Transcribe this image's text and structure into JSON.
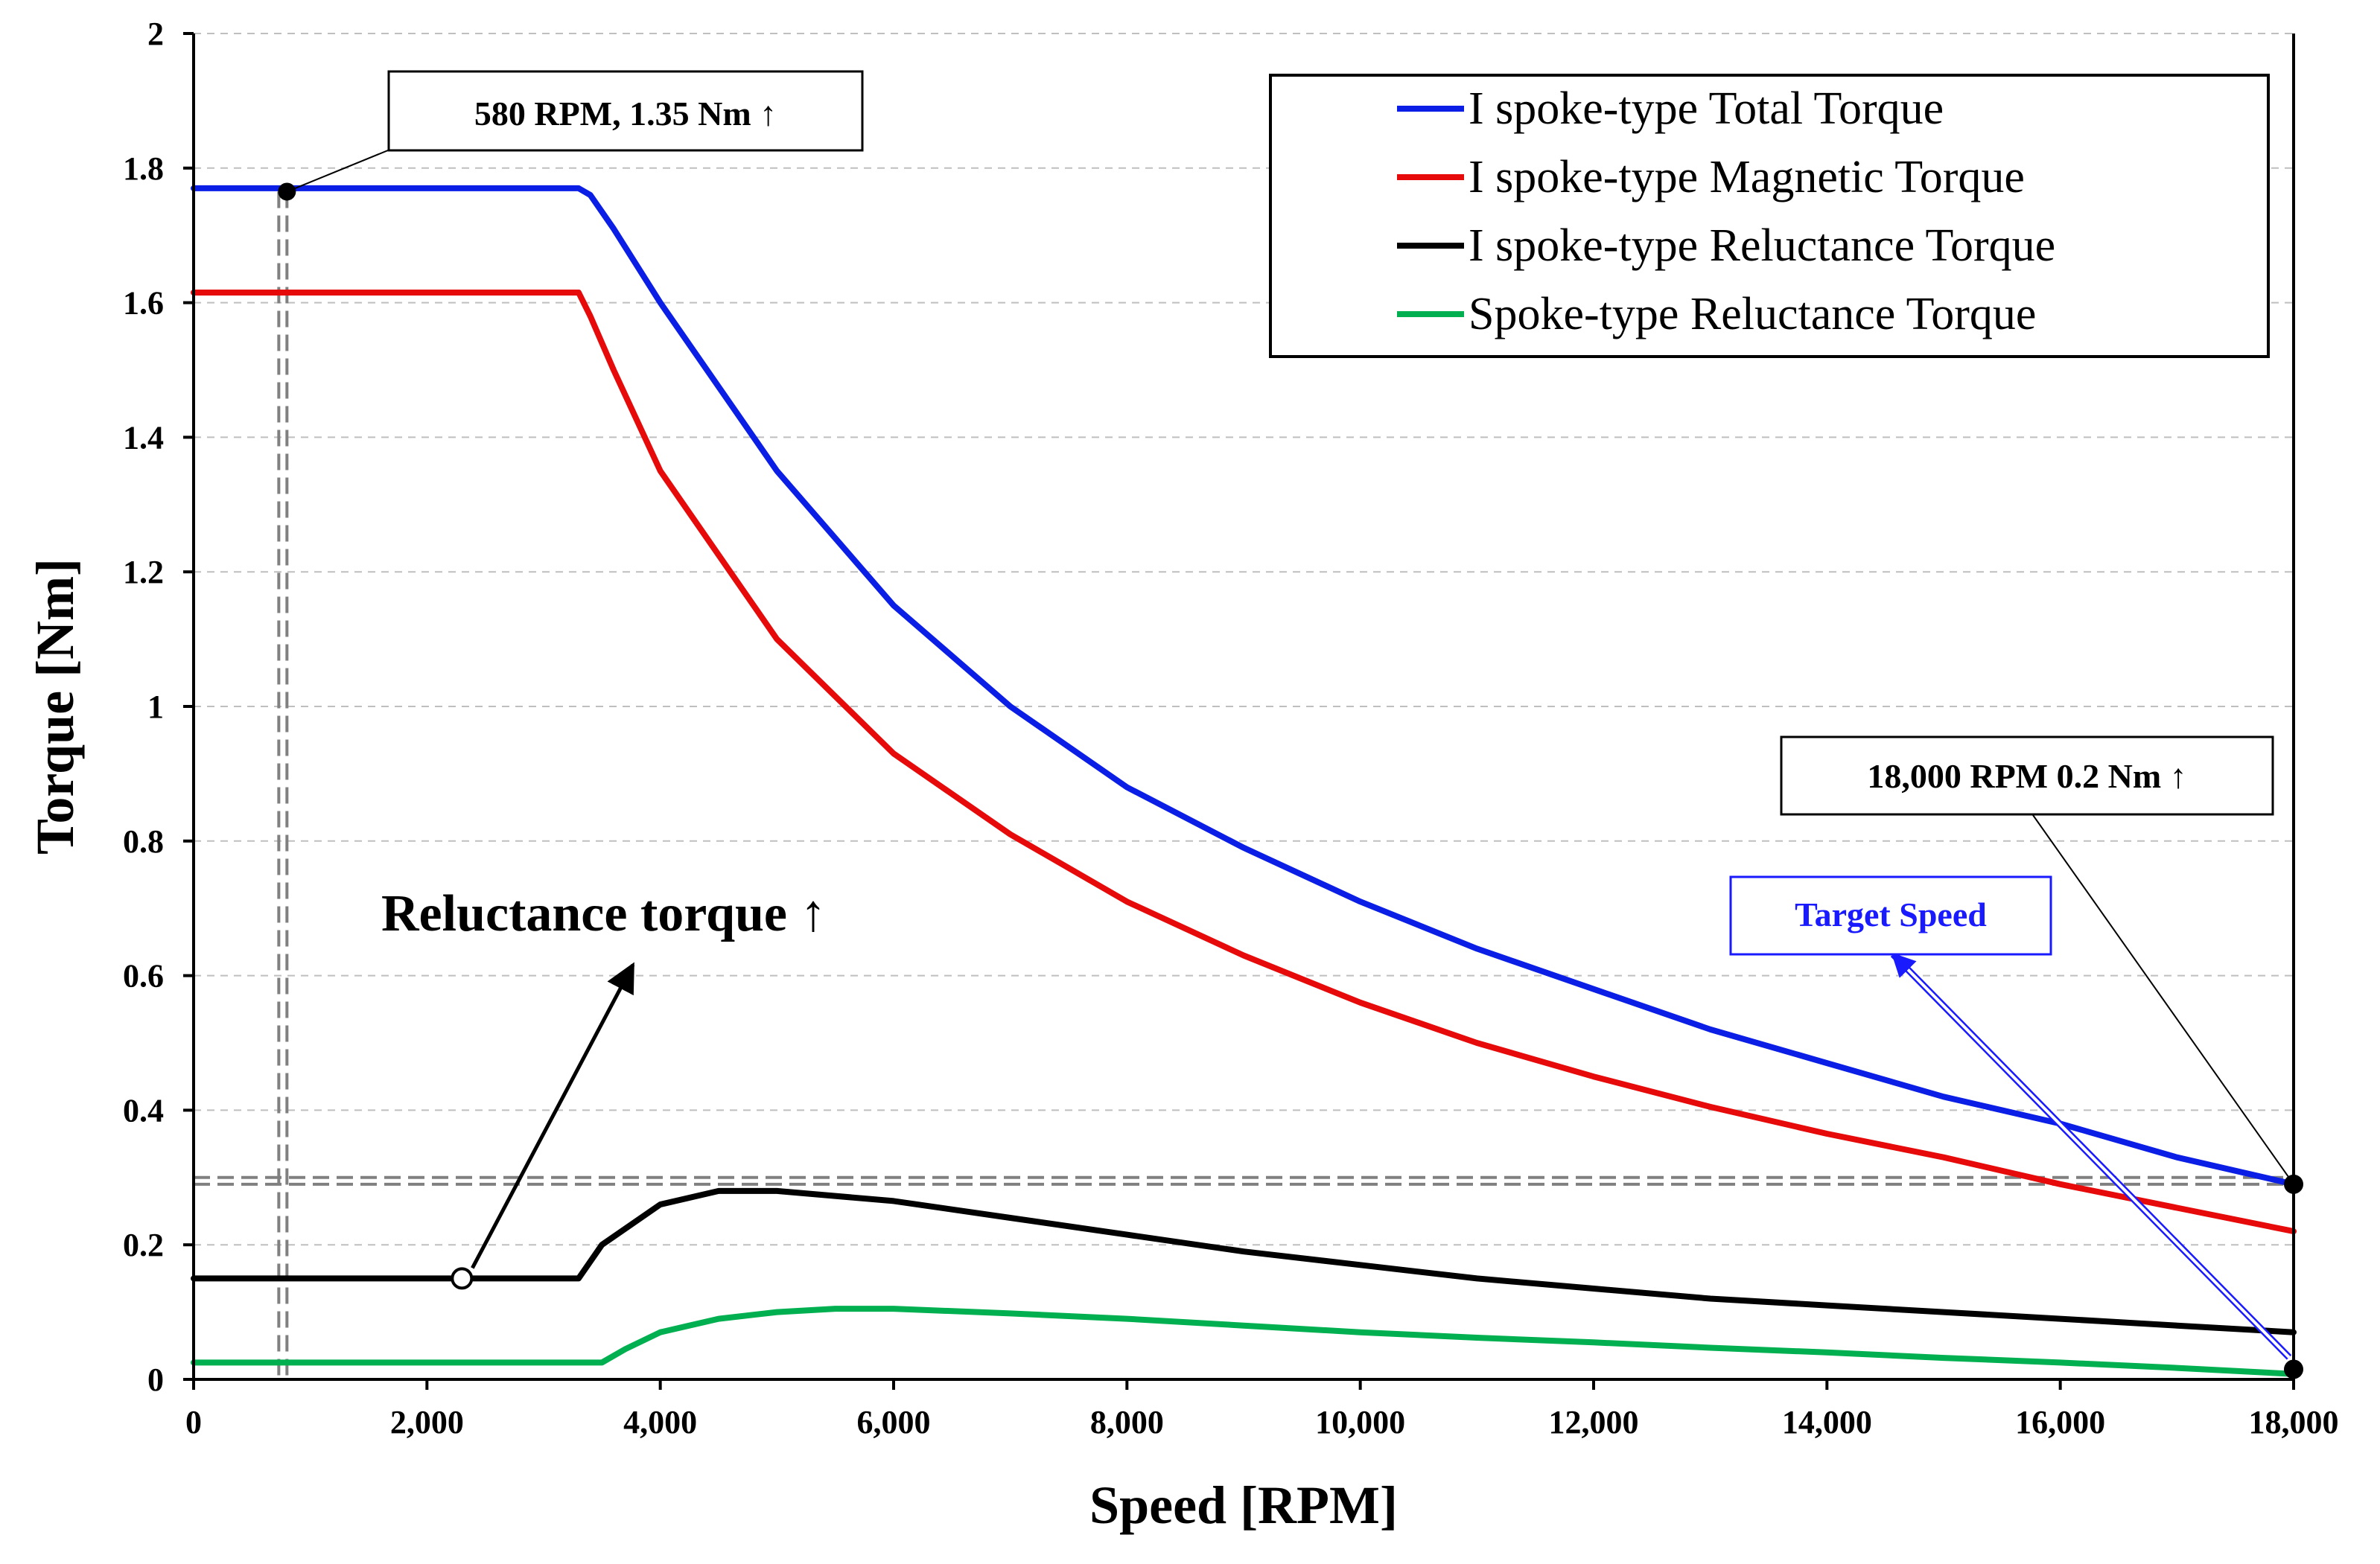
{
  "chart_data": {
    "type": "line",
    "title": "",
    "xlabel": "Speed [RPM]",
    "ylabel": "Torque [Nm]",
    "xlim": [
      0,
      18000
    ],
    "ylim": [
      0,
      2
    ],
    "xticks": [
      0,
      2000,
      4000,
      6000,
      8000,
      10000,
      12000,
      14000,
      16000,
      18000
    ],
    "xtick_labels": [
      "0",
      "2,000",
      "4,000",
      "6,000",
      "8,000",
      "10,000",
      "12,000",
      "14,000",
      "16,000",
      "18,000"
    ],
    "yticks": [
      0,
      0.2,
      0.4,
      0.6,
      0.8,
      1,
      1.2,
      1.4,
      1.6,
      1.8,
      2
    ],
    "ytick_labels": [
      "0",
      "0.2",
      "0.4",
      "0.6",
      "0.8",
      "1",
      "1.2",
      "1.4",
      "1.6",
      "1.8",
      "2"
    ],
    "grid": "horizontal dashed",
    "legend_position": "top-right",
    "series": [
      {
        "name": "I spoke-type Total Torque",
        "color": "#0a1ee6",
        "x": [
          0,
          3300,
          3400,
          3600,
          4000,
          5000,
          6000,
          7000,
          8000,
          9000,
          10000,
          11000,
          12000,
          13000,
          14000,
          15000,
          16000,
          17000,
          18000
        ],
        "y": [
          1.77,
          1.77,
          1.76,
          1.71,
          1.6,
          1.35,
          1.15,
          1.0,
          0.88,
          0.79,
          0.71,
          0.64,
          0.58,
          0.52,
          0.47,
          0.42,
          0.38,
          0.33,
          0.29
        ]
      },
      {
        "name": "I spoke-type Magnetic Torque",
        "color": "#e60a0a",
        "x": [
          0,
          3300,
          3400,
          3600,
          4000,
          5000,
          6000,
          7000,
          8000,
          9000,
          10000,
          11000,
          12000,
          13000,
          14000,
          15000,
          16000,
          17000,
          18000
        ],
        "y": [
          1.615,
          1.615,
          1.58,
          1.5,
          1.35,
          1.1,
          0.93,
          0.81,
          0.71,
          0.63,
          0.56,
          0.5,
          0.45,
          0.405,
          0.365,
          0.33,
          0.29,
          0.255,
          0.22
        ]
      },
      {
        "name": "I spoke-type Reluctance Torque",
        "color": "#000000",
        "x": [
          0,
          3300,
          3500,
          4000,
          4500,
          5000,
          6000,
          7000,
          8000,
          9000,
          10000,
          11000,
          12000,
          13000,
          14000,
          15000,
          16000,
          17000,
          18000
        ],
        "y": [
          0.15,
          0.15,
          0.2,
          0.26,
          0.28,
          0.28,
          0.265,
          0.24,
          0.215,
          0.19,
          0.17,
          0.15,
          0.135,
          0.12,
          0.11,
          0.1,
          0.09,
          0.08,
          0.07
        ]
      },
      {
        "name": "Spoke-type Reluctance Torque",
        "color": "#00b050",
        "x": [
          0,
          3500,
          3700,
          4000,
          4500,
          5000,
          5500,
          6000,
          7000,
          8000,
          9000,
          10000,
          11000,
          12000,
          13000,
          14000,
          15000,
          16000,
          17000,
          18000
        ],
        "y": [
          0.025,
          0.025,
          0.045,
          0.07,
          0.09,
          0.1,
          0.105,
          0.105,
          0.098,
          0.09,
          0.08,
          0.07,
          0.062,
          0.055,
          0.047,
          0.04,
          0.032,
          0.025,
          0.017,
          0.008
        ]
      }
    ],
    "annotations": {
      "low_speed": {
        "text": "580 RPM, 1.35 Nm ↑",
        "x": 800,
        "y": 1.765
      },
      "reluctance": {
        "text": "Reluctance torque ↑",
        "x": 2300,
        "y": 0.15
      },
      "high_speed": {
        "text": "18,000 RPM 0.2 Nm ↑",
        "x": 18000,
        "y": 0.29
      },
      "target": {
        "text": "Target Speed",
        "x": 18000,
        "y": 0.015
      }
    },
    "reference_line_y": [
      0.29,
      0.3
    ]
  }
}
